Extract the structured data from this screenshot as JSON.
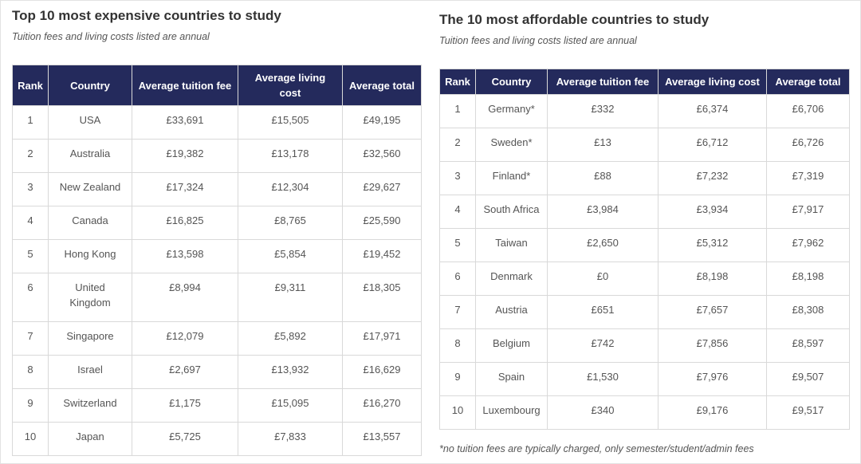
{
  "expensive": {
    "title": "Top 10 most expensive countries to study",
    "subtitle": "Tuition fees and living costs listed are annual",
    "headers": {
      "rank": "Rank",
      "country": "Country",
      "tuition": "Average tuition fee",
      "living": "Average living cost",
      "total": "Average total"
    },
    "rows": [
      {
        "rank": "1",
        "country": "USA",
        "tuition": "£33,691",
        "living": "£15,505",
        "total": "£49,195"
      },
      {
        "rank": "2",
        "country": "Australia",
        "tuition": "£19,382",
        "living": "£13,178",
        "total": "£32,560"
      },
      {
        "rank": "3",
        "country": "New Zealand",
        "tuition": "£17,324",
        "living": "£12,304",
        "total": "£29,627"
      },
      {
        "rank": "4",
        "country": "Canada",
        "tuition": "£16,825",
        "living": "£8,765",
        "total": "£25,590"
      },
      {
        "rank": "5",
        "country": "Hong Kong",
        "tuition": "£13,598",
        "living": "£5,854",
        "total": "£19,452"
      },
      {
        "rank": "6",
        "country": "United Kingdom",
        "tuition": "£8,994",
        "living": "£9,311",
        "total": "£18,305"
      },
      {
        "rank": "7",
        "country": "Singapore",
        "tuition": "£12,079",
        "living": "£5,892",
        "total": "£17,971"
      },
      {
        "rank": "8",
        "country": "Israel",
        "tuition": "£2,697",
        "living": "£13,932",
        "total": "£16,629"
      },
      {
        "rank": "9",
        "country": "Switzerland",
        "tuition": "£1,175",
        "living": "£15,095",
        "total": "£16,270"
      },
      {
        "rank": "10",
        "country": "Japan",
        "tuition": "£5,725",
        "living": "£7,833",
        "total": "£13,557"
      }
    ]
  },
  "affordable": {
    "title": "The 10 most affordable countries to study",
    "subtitle": "Tuition fees and living costs listed are annual",
    "headers": {
      "rank": "Rank",
      "country": "Country",
      "tuition": "Average tuition fee",
      "living": "Average living cost",
      "total": "Average total"
    },
    "rows": [
      {
        "rank": "1",
        "country": "Germany*",
        "tuition": "£332",
        "living": "£6,374",
        "total": "£6,706"
      },
      {
        "rank": "2",
        "country": "Sweden*",
        "tuition": "£13",
        "living": "£6,712",
        "total": "£6,726"
      },
      {
        "rank": "3",
        "country": "Finland*",
        "tuition": "£88",
        "living": "£7,232",
        "total": "£7,319"
      },
      {
        "rank": "4",
        "country": "South Africa",
        "tuition": "£3,984",
        "living": "£3,934",
        "total": "£7,917"
      },
      {
        "rank": "5",
        "country": "Taiwan",
        "tuition": "£2,650",
        "living": "£5,312",
        "total": "£7,962"
      },
      {
        "rank": "6",
        "country": "Denmark",
        "tuition": "£0",
        "living": "£8,198",
        "total": "£8,198"
      },
      {
        "rank": "7",
        "country": "Austria",
        "tuition": "£651",
        "living": "£7,657",
        "total": "£8,308"
      },
      {
        "rank": "8",
        "country": "Belgium",
        "tuition": "£742",
        "living": "£7,856",
        "total": "£8,597"
      },
      {
        "rank": "9",
        "country": "Spain",
        "tuition": "£1,530",
        "living": "£7,976",
        "total": "£9,507"
      },
      {
        "rank": "10",
        "country": "Luxembourg",
        "tuition": "£340",
        "living": "£9,176",
        "total": "£9,517"
      }
    ],
    "footnote": "*no tuition fees are typically charged, only semester/student/admin fees"
  },
  "colors": {
    "header_bg": "#242a5c",
    "header_text": "#ffffff",
    "border": "#d9d9d9"
  }
}
